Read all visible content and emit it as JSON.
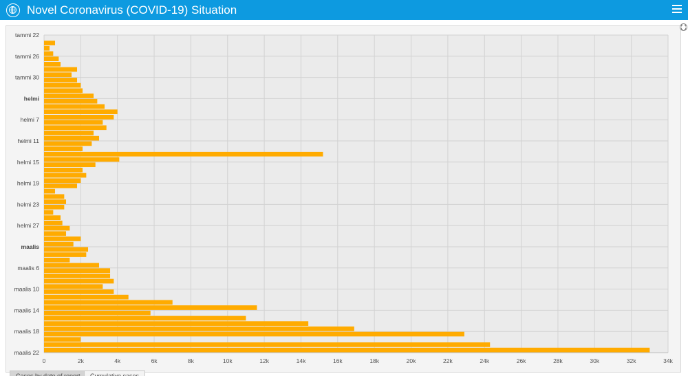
{
  "header": {
    "title": "Novel Coronavirus (COVID-19) Situation",
    "logo_icon": "who-emblem-icon",
    "menu_icon": "hamburger-menu-icon",
    "bg_color": "#0d9ae0"
  },
  "tabs": [
    {
      "label": "Cases by date of report",
      "active": true
    },
    {
      "label": "Cumulative cases",
      "active": false
    }
  ],
  "chart_data": {
    "type": "bar",
    "orientation": "horizontal",
    "bar_color": "#ffab00",
    "xlim": [
      0,
      34000
    ],
    "x_ticks": [
      0,
      2000,
      4000,
      6000,
      8000,
      10000,
      12000,
      14000,
      16000,
      18000,
      20000,
      22000,
      24000,
      26000,
      28000,
      30000,
      32000,
      34000
    ],
    "x_tick_labels": [
      "0",
      "2k",
      "4k",
      "6k",
      "8k",
      "10k",
      "12k",
      "14k",
      "16k",
      "18k",
      "20k",
      "22k",
      "24k",
      "26k",
      "28k",
      "30k",
      "32k",
      "34k"
    ],
    "y_tick_labels": [
      {
        "index": 0,
        "label": "tammi 22",
        "bold": false
      },
      {
        "index": 4,
        "label": "tammi 26",
        "bold": false
      },
      {
        "index": 8,
        "label": "tammi 30",
        "bold": false
      },
      {
        "index": 12,
        "label": "helmi",
        "bold": true
      },
      {
        "index": 16,
        "label": "helmi 7",
        "bold": false
      },
      {
        "index": 20,
        "label": "helmi 11",
        "bold": false
      },
      {
        "index": 24,
        "label": "helmi 15",
        "bold": false
      },
      {
        "index": 28,
        "label": "helmi 19",
        "bold": false
      },
      {
        "index": 32,
        "label": "helmi 23",
        "bold": false
      },
      {
        "index": 36,
        "label": "helmi 27",
        "bold": false
      },
      {
        "index": 40,
        "label": "maalis",
        "bold": true
      },
      {
        "index": 44,
        "label": "maalis 6",
        "bold": false
      },
      {
        "index": 48,
        "label": "maalis 10",
        "bold": false
      },
      {
        "index": 52,
        "label": "maalis 14",
        "bold": false
      },
      {
        "index": 56,
        "label": "maalis 18",
        "bold": false
      },
      {
        "index": 60,
        "label": "maalis 22",
        "bold": false
      }
    ],
    "values": [
      600,
      300,
      500,
      800,
      900,
      1800,
      1500,
      1800,
      2000,
      2100,
      2700,
      2900,
      3300,
      4000,
      3800,
      3200,
      3400,
      2700,
      3000,
      2600,
      2100,
      15200,
      4100,
      2800,
      2100,
      2300,
      2000,
      1800,
      600,
      1100,
      1200,
      1100,
      500,
      900,
      1000,
      1400,
      1200,
      2000,
      1600,
      2400,
      2300,
      1400,
      3000,
      3600,
      3600,
      3800,
      3200,
      3800,
      4600,
      7000,
      11600,
      5800,
      11000,
      14400,
      16900,
      22900,
      2000,
      24300,
      33000
    ]
  }
}
